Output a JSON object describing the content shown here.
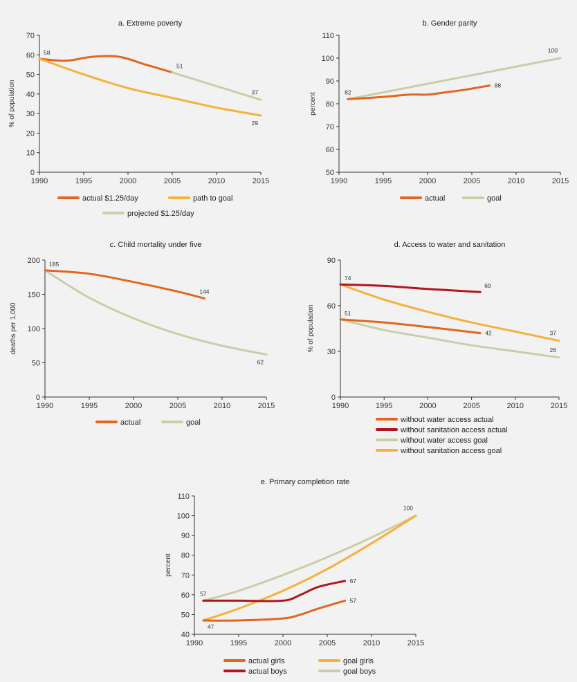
{
  "colors": {
    "actual": "#e2661f",
    "goal_light": "#c8cfa6",
    "path_yellow": "#f6b03c",
    "dark_red": "#b0161c",
    "axis": "#333333"
  },
  "chart_data": [
    {
      "id": "a",
      "type": "line",
      "title": "a. Extreme poverty",
      "ylabel": "% of population",
      "xlim": [
        1990,
        2015
      ],
      "ylim": [
        0,
        70
      ],
      "xticks": [
        1990,
        1995,
        2000,
        2005,
        2010,
        2015
      ],
      "yticks": [
        0,
        10,
        20,
        30,
        40,
        50,
        60,
        70
      ],
      "series": [
        {
          "name": "actual $1.25/day",
          "color": "#e2661f",
          "x": [
            1990,
            1993,
            1996,
            1999,
            2002,
            2005
          ],
          "y": [
            58,
            57,
            59,
            59,
            55,
            51
          ]
        },
        {
          "name": "path to goal",
          "color": "#f6b03c",
          "x": [
            1990,
            1995,
            2000,
            2005,
            2010,
            2015
          ],
          "y": [
            58,
            50,
            43,
            38,
            33,
            29
          ]
        },
        {
          "name": "projected $1.25/day",
          "color": "#c8cfa6",
          "x": [
            2005,
            2010,
            2015
          ],
          "y": [
            51,
            44,
            37
          ]
        }
      ],
      "labels": [
        {
          "text": "58",
          "x": 1990,
          "y": 58,
          "pos": "upper-right"
        },
        {
          "text": "51",
          "x": 2005,
          "y": 51,
          "pos": "upper-right"
        },
        {
          "text": "37",
          "x": 2015,
          "y": 37,
          "pos": "upper-left"
        },
        {
          "text": "29",
          "x": 2015,
          "y": 29,
          "pos": "lower-left"
        }
      ],
      "legend": [
        {
          "name": "actual $1.25/day",
          "color": "#e2661f"
        },
        {
          "name": "path to goal",
          "color": "#f6b03c"
        },
        {
          "name": "projected $1.25/day",
          "color": "#c8cfa6"
        }
      ]
    },
    {
      "id": "b",
      "type": "line",
      "title": "b. Gender parity",
      "ylabel": "percent",
      "xlim": [
        1990,
        2015
      ],
      "ylim": [
        50,
        110
      ],
      "xticks": [
        1990,
        1995,
        2000,
        2005,
        2010,
        2015
      ],
      "yticks": [
        50,
        60,
        70,
        80,
        90,
        100,
        110
      ],
      "series": [
        {
          "name": "goal",
          "color": "#c8cfa6",
          "x": [
            1991,
            2015
          ],
          "y": [
            82,
            100
          ]
        },
        {
          "name": "actual",
          "color": "#e2661f",
          "x": [
            1991,
            1995,
            1998,
            2000,
            2002,
            2004,
            2007
          ],
          "y": [
            82,
            83,
            84,
            84,
            85,
            86,
            88
          ]
        }
      ],
      "labels": [
        {
          "text": "82",
          "x": 1991,
          "y": 82,
          "pos": "upper"
        },
        {
          "text": "88",
          "x": 2007,
          "y": 88,
          "pos": "right"
        },
        {
          "text": "100",
          "x": 2015,
          "y": 100,
          "pos": "upper-left"
        }
      ],
      "legend": [
        {
          "name": "actual",
          "color": "#e2661f"
        },
        {
          "name": "goal",
          "color": "#c8cfa6"
        }
      ]
    },
    {
      "id": "c",
      "type": "line",
      "title": "c. Child mortality under five",
      "ylabel": "deaths per 1,000",
      "xlim": [
        1990,
        2015
      ],
      "ylim": [
        0,
        200
      ],
      "xticks": [
        1990,
        1995,
        2000,
        2005,
        2010,
        2015
      ],
      "yticks": [
        0,
        50,
        100,
        150,
        200
      ],
      "series": [
        {
          "name": "goal",
          "color": "#c8cfa6",
          "x": [
            1990,
            1995,
            2000,
            2005,
            2010,
            2015
          ],
          "y": [
            185,
            145,
            115,
            92,
            75,
            62
          ]
        },
        {
          "name": "actual",
          "color": "#e2661f",
          "x": [
            1990,
            1995,
            2000,
            2005,
            2008
          ],
          "y": [
            185,
            180,
            168,
            154,
            144
          ]
        }
      ],
      "labels": [
        {
          "text": "185",
          "x": 1990,
          "y": 185,
          "pos": "upper-right"
        },
        {
          "text": "144",
          "x": 2008,
          "y": 144,
          "pos": "upper"
        },
        {
          "text": "62",
          "x": 2015,
          "y": 62,
          "pos": "lower-left"
        }
      ],
      "legend": [
        {
          "name": "actual",
          "color": "#e2661f"
        },
        {
          "name": "goal",
          "color": "#c8cfa6"
        }
      ]
    },
    {
      "id": "d",
      "type": "line",
      "title": "d. Access to water and sanitation",
      "ylabel": "% of population",
      "xlim": [
        1990,
        2015
      ],
      "ylim": [
        0,
        90
      ],
      "xticks": [
        1990,
        1995,
        2000,
        2005,
        2010,
        2015
      ],
      "yticks": [
        0,
        30,
        60,
        90
      ],
      "series": [
        {
          "name": "without sanitation access goal",
          "color": "#f6b03c",
          "x": [
            1990,
            1995,
            2000,
            2005,
            2010,
            2015
          ],
          "y": [
            74,
            64,
            56,
            49,
            43,
            37
          ]
        },
        {
          "name": "without water access goal",
          "color": "#c8cfa6",
          "x": [
            1990,
            1995,
            2000,
            2005,
            2010,
            2015
          ],
          "y": [
            51,
            44,
            39,
            34,
            30,
            26
          ]
        },
        {
          "name": "without water access actual",
          "color": "#e2661f",
          "x": [
            1990,
            1995,
            2000,
            2006
          ],
          "y": [
            51,
            49,
            46,
            42
          ]
        },
        {
          "name": "without sanitation access actual",
          "color": "#b0161c",
          "x": [
            1990,
            1995,
            2000,
            2006
          ],
          "y": [
            74,
            73,
            71,
            69
          ]
        }
      ],
      "labels": [
        {
          "text": "74",
          "x": 1990,
          "y": 74,
          "pos": "upper-right"
        },
        {
          "text": "69",
          "x": 2006,
          "y": 69,
          "pos": "upper-right"
        },
        {
          "text": "51",
          "x": 1990,
          "y": 51,
          "pos": "upper-right"
        },
        {
          "text": "42",
          "x": 2006,
          "y": 42,
          "pos": "right"
        },
        {
          "text": "37",
          "x": 2015,
          "y": 37,
          "pos": "upper-left"
        },
        {
          "text": "26",
          "x": 2015,
          "y": 26,
          "pos": "upper-left"
        }
      ],
      "legend": [
        {
          "name": "without water access actual",
          "color": "#e2661f"
        },
        {
          "name": "without sanitation access actual",
          "color": "#b0161c"
        },
        {
          "name": "without water access goal",
          "color": "#c8cfa6"
        },
        {
          "name": "without sanitation access goal",
          "color": "#f6b03c"
        }
      ]
    },
    {
      "id": "e",
      "type": "line",
      "title": "e. Primary completion rate",
      "ylabel": "percent",
      "xlim": [
        1990,
        2015
      ],
      "ylim": [
        40,
        110
      ],
      "xticks": [
        1990,
        1995,
        2000,
        2005,
        2010,
        2015
      ],
      "yticks": [
        40,
        50,
        60,
        70,
        80,
        90,
        100,
        110
      ],
      "series": [
        {
          "name": "goal boys",
          "color": "#c8cfa6",
          "x": [
            1991,
            1995,
            2000,
            2005,
            2010,
            2015
          ],
          "y": [
            57,
            62,
            70,
            79,
            89,
            100
          ]
        },
        {
          "name": "goal girls",
          "color": "#f6b03c",
          "x": [
            1991,
            1995,
            2000,
            2005,
            2010,
            2015
          ],
          "y": [
            47,
            53,
            62,
            73,
            86,
            100
          ]
        },
        {
          "name": "actual boys",
          "color": "#b0161c",
          "x": [
            1991,
            1995,
            2000,
            2002,
            2004,
            2007
          ],
          "y": [
            57,
            57,
            57,
            60,
            64,
            67
          ]
        },
        {
          "name": "actual girls",
          "color": "#e2661f",
          "x": [
            1991,
            1995,
            2000,
            2002,
            2004,
            2007
          ],
          "y": [
            47,
            47,
            48,
            50,
            53,
            57
          ]
        }
      ],
      "labels": [
        {
          "text": "57",
          "x": 1991,
          "y": 57,
          "pos": "upper"
        },
        {
          "text": "47",
          "x": 1991,
          "y": 47,
          "pos": "lower-right"
        },
        {
          "text": "67",
          "x": 2007,
          "y": 67,
          "pos": "right"
        },
        {
          "text": "57",
          "x": 2007,
          "y": 57,
          "pos": "right"
        },
        {
          "text": "100",
          "x": 2015,
          "y": 100,
          "pos": "upper-left"
        }
      ],
      "legend": [
        {
          "name": "actual girls",
          "color": "#e2661f"
        },
        {
          "name": "goal girls",
          "color": "#f6b03c"
        },
        {
          "name": "actual boys",
          "color": "#b0161c"
        },
        {
          "name": "goal boys",
          "color": "#c8cfa6"
        }
      ]
    }
  ]
}
